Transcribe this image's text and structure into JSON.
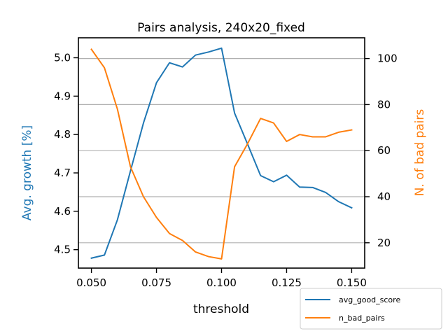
{
  "chart_data": {
    "type": "line",
    "title": "Pairs analysis, 240x20_fixed",
    "xlabel": "threshold",
    "ylabel_left": "Avg. growth [%]",
    "ylabel_right": "N. of bad pairs",
    "xlim": [
      0.045,
      0.155
    ],
    "ylim_left": [
      4.452,
      5.052
    ],
    "ylim_right": [
      9,
      109
    ],
    "x_ticks": [
      "0.050",
      "0.075",
      "0.100",
      "0.125",
      "0.150"
    ],
    "y_left_ticks": [
      "4.5",
      "4.6",
      "4.7",
      "4.8",
      "4.9",
      "5.0"
    ],
    "y_right_ticks": [
      "20",
      "40",
      "60",
      "80",
      "100"
    ],
    "grid": "horizontal lines at right-axis ticks",
    "legend_position": "bottom-right, outside plot area",
    "x": [
      0.05,
      0.055,
      0.06,
      0.065,
      0.07,
      0.075,
      0.08,
      0.085,
      0.09,
      0.095,
      0.1,
      0.105,
      0.11,
      0.115,
      0.12,
      0.125,
      0.13,
      0.135,
      0.14,
      0.145,
      0.15
    ],
    "series": [
      {
        "name": "avg_good_score",
        "axis": "left",
        "color": "#1f77b4",
        "values": [
          4.478,
          4.486,
          4.578,
          4.705,
          4.83,
          4.935,
          4.987,
          4.976,
          5.007,
          5.015,
          5.025,
          4.856,
          4.775,
          4.693,
          4.677,
          4.694,
          4.663,
          4.662,
          4.649,
          4.625,
          4.609
        ]
      },
      {
        "name": "n_bad_pairs",
        "axis": "right",
        "color": "#ff7f0e",
        "values": [
          104,
          96,
          78,
          53,
          40,
          31,
          24,
          21,
          16,
          14,
          13,
          53,
          63,
          74,
          72,
          64,
          67,
          66,
          66,
          68,
          69
        ]
      }
    ]
  }
}
